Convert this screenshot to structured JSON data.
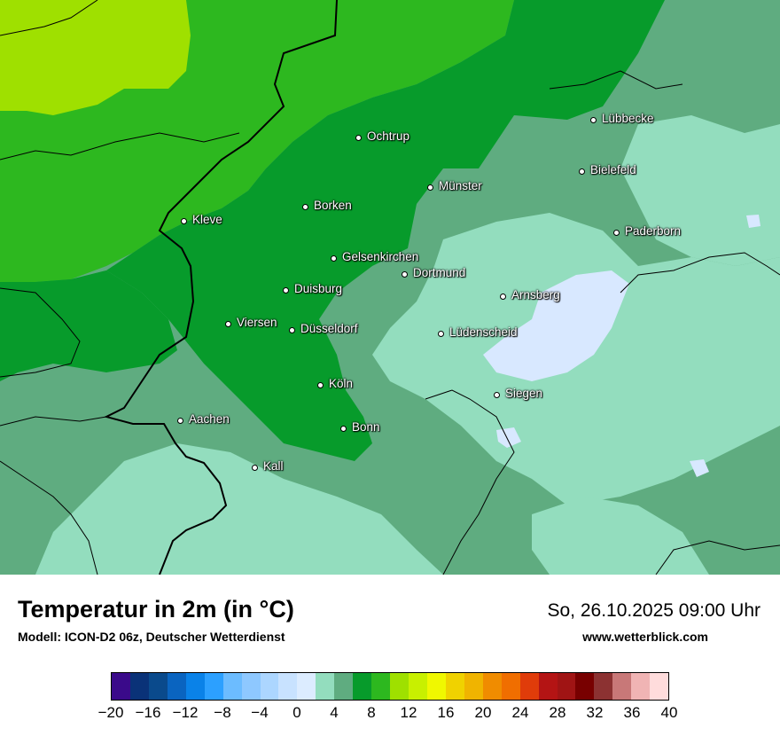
{
  "map": {
    "title": "Temperatur in 2m (in °C)",
    "subtitle": "Modell: ICON-D2 06z, Deutscher Wetterdienst",
    "datetime": "So, 26.10.2025 09:00 Uhr",
    "website": "www.wetterblick.com"
  },
  "colors": {
    "temp_10": "#9fe000",
    "temp_8": "#2db81f",
    "temp_6": "#079b2b",
    "temp_4": "#5fac80",
    "temp_2": "#93ddbe",
    "temp_0": "#d8e8ff"
  },
  "cities": [
    {
      "name": "Lübbecke"
    },
    {
      "name": "Ochtrup"
    },
    {
      "name": "Bielefeld"
    },
    {
      "name": "Münster"
    },
    {
      "name": "Borken"
    },
    {
      "name": "Kleve"
    },
    {
      "name": "Paderborn"
    },
    {
      "name": "Gelsenkirchen"
    },
    {
      "name": "Dortmund"
    },
    {
      "name": "Duisburg"
    },
    {
      "name": "Arnsberg"
    },
    {
      "name": "Viersen"
    },
    {
      "name": "Düsseldorf"
    },
    {
      "name": "Lüdenscheid"
    },
    {
      "name": "Köln"
    },
    {
      "name": "Siegen"
    },
    {
      "name": "Aachen"
    },
    {
      "name": "Bonn"
    },
    {
      "name": "Kall"
    }
  ],
  "legend": {
    "colors": [
      "#3a0a8a",
      "#0a3278",
      "#0a4a8c",
      "#0a64c0",
      "#0a82e8",
      "#2ca0ff",
      "#6cbcff",
      "#8ec8ff",
      "#acd6ff",
      "#c8e2ff",
      "#dcecff",
      "#93ddbe",
      "#5fac80",
      "#079b2b",
      "#2db81f",
      "#9fe000",
      "#c8f000",
      "#f0f800",
      "#f0d200",
      "#f0b400",
      "#f08c00",
      "#f06e00",
      "#e03c0a",
      "#b41414",
      "#a01414",
      "#780000",
      "#8c3232",
      "#c87878",
      "#f0b4b4",
      "#ffdcdc"
    ],
    "ticks": [
      "−20",
      "−16",
      "−12",
      "−8",
      "−4",
      "0",
      "4",
      "8",
      "12",
      "16",
      "20",
      "24",
      "28",
      "32",
      "36",
      "40"
    ]
  }
}
